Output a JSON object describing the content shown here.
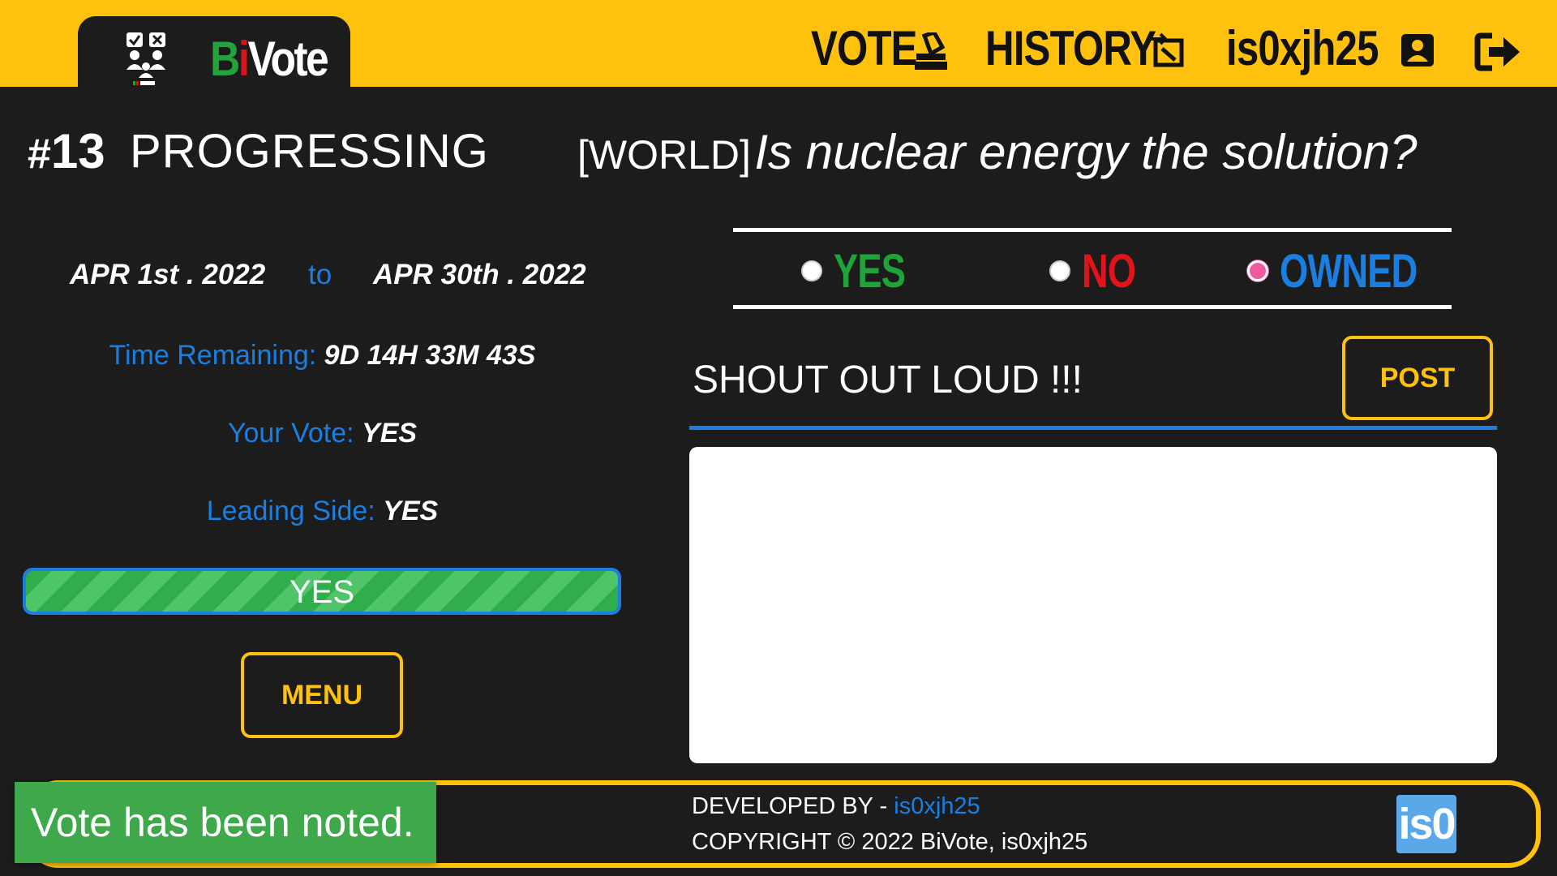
{
  "header": {
    "logo_text_b": "B",
    "logo_text_i": "i",
    "logo_text_rest": "Vote",
    "logo_icon": "ballot-people-icon",
    "nav": {
      "vote_label": "VOTE",
      "vote_icon": "ballot-box-icon",
      "history_label": "HISTORY",
      "history_icon": "history-icon",
      "user_label": "is0xjh25",
      "user_icon": "user-icon",
      "logout_icon": "logout-icon"
    },
    "background_color": "#fec10e"
  },
  "poll": {
    "id_hash": "#",
    "id_number": "13",
    "status": "PROGRESSING",
    "category": "[WORLD]",
    "question": "Is nuclear energy the solution?",
    "start_date": "APR 1st . 2022",
    "to_label": "to",
    "end_date": "APR 30th . 2022",
    "time_remaining_label": "Time Remaining:",
    "time_remaining_value": "9D 14H 33M 43S",
    "your_vote_label": "Your Vote:",
    "your_vote_value": "YES",
    "leading_side_label": "Leading Side:",
    "leading_side_value": "YES",
    "progress_label": "YES",
    "progress_fraction": 1.0,
    "menu_label": "MENU"
  },
  "options": [
    {
      "label": "YES",
      "selected": false,
      "color": "#1fa43a"
    },
    {
      "label": "NO",
      "selected": false,
      "color": "#e0141a"
    },
    {
      "label": "OWNED",
      "selected": true,
      "color": "#1a7fe0"
    }
  ],
  "shout": {
    "heading": "SHOUT OUT LOUD !!!",
    "post_label": "POST",
    "comment_value": ""
  },
  "footer": {
    "developed_by_label": "DEVELOPED BY - ",
    "developer_link": "is0xjh25",
    "copyright": "COPYRIGHT © 2022 BiVote, is0xjh25",
    "logo_text": "is0"
  },
  "toast": {
    "message": "Vote has been noted."
  },
  "colors": {
    "accent_yellow": "#fec10e",
    "accent_blue": "#1a7fe0",
    "success_green": "#3ea84a",
    "background": "#1c1c1c"
  }
}
